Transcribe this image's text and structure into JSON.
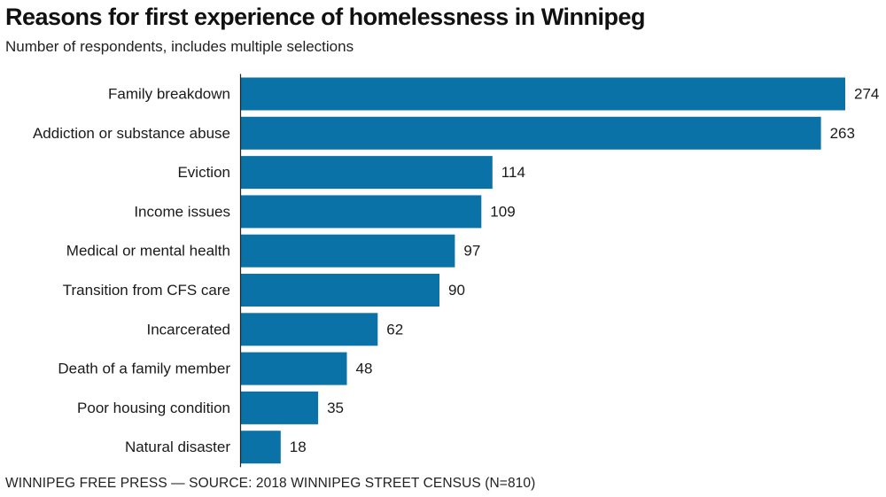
{
  "header": {
    "title": "Reasons for first experience of homelessness in Winnipeg",
    "subtitle": "Number of respondents, includes multiple selections"
  },
  "footer": {
    "credit": "WINNIPEG FREE PRESS — SOURCE: 2018 WINNIPEG STREET CENSUS (N=810)"
  },
  "colors": {
    "bar": "#0a72a6",
    "axis": "#222222"
  },
  "chart_data": {
    "type": "bar",
    "orientation": "horizontal",
    "title": "Reasons for first experience of homelessness in Winnipeg",
    "subtitle": "Number of respondents, includes multiple selections",
    "xlabel": "",
    "ylabel": "",
    "xlim": [
      0,
      274
    ],
    "grid": false,
    "legend": "none",
    "categories": [
      "Family breakdown",
      "Addiction or substance abuse",
      "Eviction",
      "Income issues",
      "Medical or mental health",
      "Transition from CFS care",
      "Incarcerated",
      "Death of a family member",
      "Poor housing condition",
      "Natural disaster"
    ],
    "values": [
      274,
      263,
      114,
      109,
      97,
      90,
      62,
      48,
      35,
      18
    ],
    "data_labels": [
      "274",
      "263",
      "114",
      "109",
      "97",
      "90",
      "62",
      "48",
      "35",
      "18"
    ]
  }
}
